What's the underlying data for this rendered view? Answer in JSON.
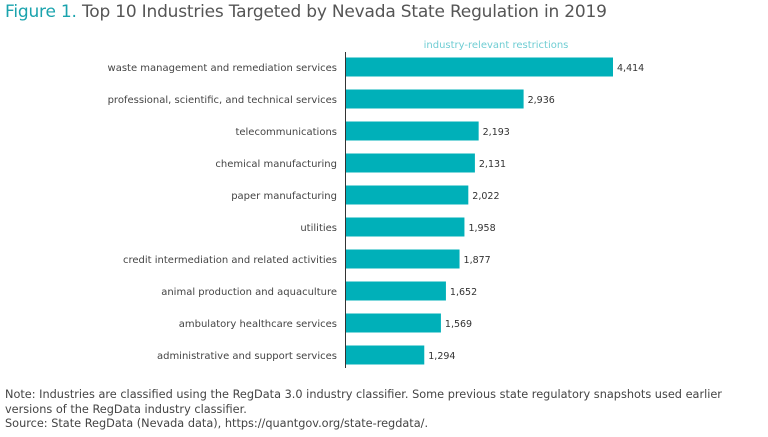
{
  "title": {
    "figure_label": "Figure 1.",
    "text": "Top 10 Industries Targeted by Nevada State Regulation in 2019"
  },
  "chart_data": {
    "type": "bar",
    "orientation": "horizontal",
    "series_label": "industry-relevant restrictions",
    "categories": [
      "waste management and remediation services",
      "professional, scientific, and technical services",
      "telecommunications",
      "chemical manufacturing",
      "paper manufacturing",
      "utilities",
      "credit intermediation and related activities",
      "animal production and aquaculture",
      "ambulatory healthcare services",
      "administrative and support services"
    ],
    "values": [
      4414,
      2936,
      2193,
      2131,
      2022,
      1958,
      1877,
      1652,
      1569,
      1294
    ],
    "value_labels": [
      "4,414",
      "2,936",
      "2,193",
      "2,131",
      "2,022",
      "1,958",
      "1,877",
      "1,652",
      "1,569",
      "1,294"
    ],
    "xlim": [
      0,
      4414
    ],
    "grid": false,
    "colors": {
      "bar": "#00b0b9",
      "label_accent": "#1aa3ad",
      "series_label": "#6fcdd3"
    }
  },
  "notes": {
    "note": "Note: Industries are classified using the RegData 3.0 industry classifier. Some previous state regulatory snapshots used earlier versions of the RegData industry classifier.",
    "source": "Source: State RegData (Nevada data), https://quantgov.org/state-regdata/."
  }
}
